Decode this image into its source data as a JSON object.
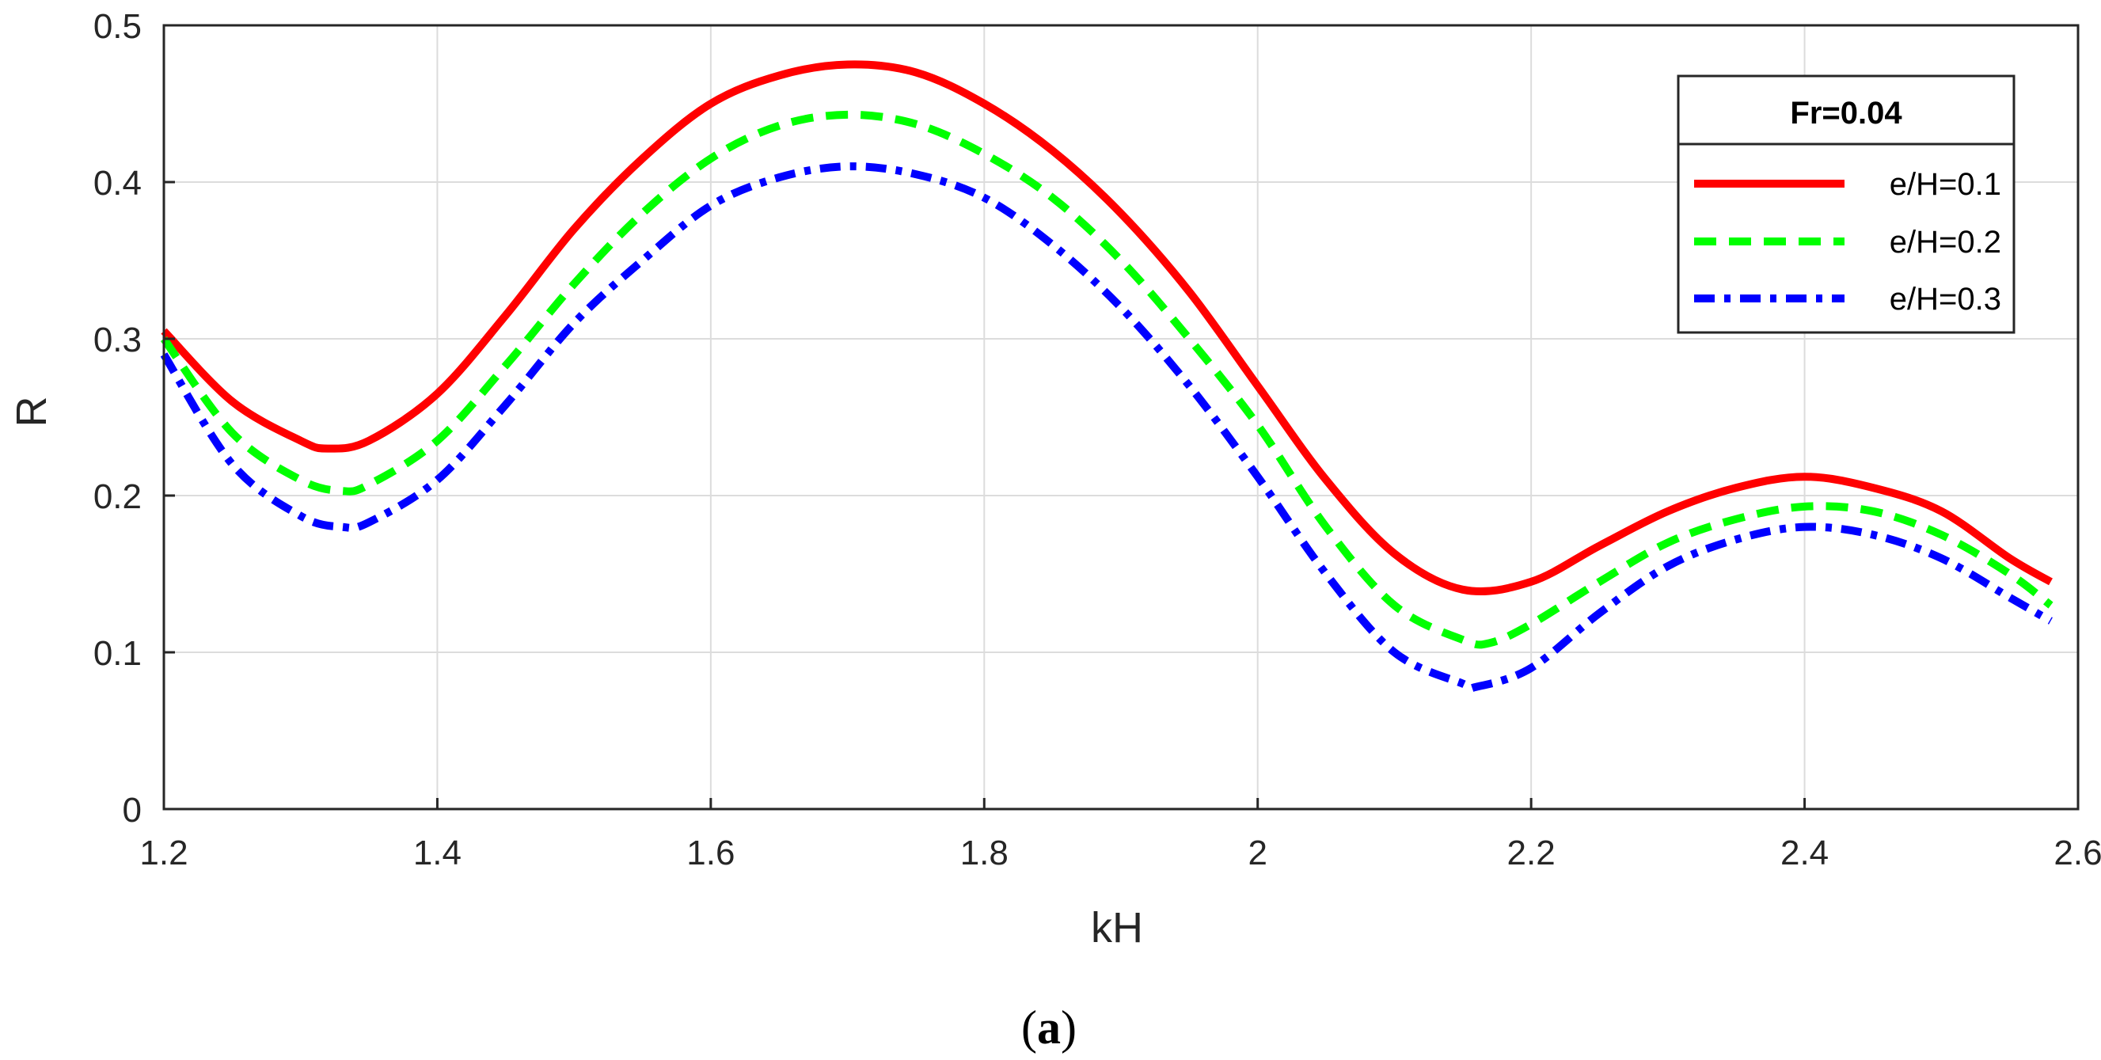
{
  "chart_data": {
    "type": "line",
    "title": "",
    "xlabel": "kH",
    "ylabel": "R",
    "xlim": [
      1.2,
      2.6
    ],
    "ylim": [
      0,
      0.5
    ],
    "xticks": [
      1.2,
      1.4,
      1.6,
      1.8,
      2,
      2.2,
      2.4,
      2.6
    ],
    "yticks": [
      0,
      0.1,
      0.2,
      0.3,
      0.4,
      0.5
    ],
    "grid": true,
    "legend": {
      "title": "Fr=0.04",
      "placement": "top-right"
    },
    "caption_paren_open": "(",
    "caption_letter": "a",
    "caption_paren_close": ")",
    "series": [
      {
        "name": "e/H=0.1",
        "color": "#ff0000",
        "style": "solid",
        "x": [
          1.2,
          1.25,
          1.3,
          1.32,
          1.35,
          1.4,
          1.45,
          1.5,
          1.55,
          1.6,
          1.65,
          1.7,
          1.75,
          1.8,
          1.85,
          1.9,
          1.95,
          2.0,
          2.05,
          2.1,
          2.15,
          2.2,
          2.25,
          2.3,
          2.35,
          2.4,
          2.45,
          2.5,
          2.55,
          2.58
        ],
        "values": [
          0.305,
          0.26,
          0.235,
          0.23,
          0.235,
          0.265,
          0.315,
          0.37,
          0.415,
          0.45,
          0.468,
          0.475,
          0.47,
          0.45,
          0.42,
          0.38,
          0.33,
          0.27,
          0.21,
          0.163,
          0.14,
          0.145,
          0.168,
          0.19,
          0.205,
          0.212,
          0.205,
          0.19,
          0.16,
          0.145
        ]
      },
      {
        "name": "e/H=0.2",
        "color": "#00ff00",
        "style": "dashed",
        "x": [
          1.2,
          1.25,
          1.3,
          1.33,
          1.35,
          1.4,
          1.45,
          1.5,
          1.55,
          1.6,
          1.65,
          1.7,
          1.75,
          1.8,
          1.85,
          1.9,
          1.95,
          2.0,
          2.05,
          2.1,
          2.15,
          2.17,
          2.2,
          2.25,
          2.3,
          2.35,
          2.4,
          2.45,
          2.5,
          2.55,
          2.58
        ],
        "values": [
          0.3,
          0.24,
          0.21,
          0.203,
          0.207,
          0.235,
          0.283,
          0.335,
          0.38,
          0.415,
          0.436,
          0.443,
          0.437,
          0.418,
          0.39,
          0.35,
          0.3,
          0.245,
          0.18,
          0.13,
          0.108,
          0.106,
          0.118,
          0.145,
          0.17,
          0.185,
          0.193,
          0.19,
          0.175,
          0.15,
          0.13
        ]
      },
      {
        "name": "e/H=0.3",
        "color": "#0000ff",
        "style": "dashdot",
        "x": [
          1.2,
          1.25,
          1.3,
          1.33,
          1.35,
          1.4,
          1.45,
          1.5,
          1.55,
          1.6,
          1.65,
          1.7,
          1.75,
          1.8,
          1.85,
          1.9,
          1.95,
          2.0,
          2.05,
          2.1,
          2.15,
          2.16,
          2.2,
          2.25,
          2.3,
          2.35,
          2.4,
          2.45,
          2.5,
          2.55,
          2.58
        ],
        "values": [
          0.29,
          0.22,
          0.187,
          0.18,
          0.183,
          0.21,
          0.258,
          0.31,
          0.35,
          0.385,
          0.403,
          0.41,
          0.405,
          0.39,
          0.36,
          0.32,
          0.27,
          0.212,
          0.15,
          0.1,
          0.08,
          0.078,
          0.09,
          0.125,
          0.155,
          0.172,
          0.18,
          0.175,
          0.16,
          0.135,
          0.12
        ]
      }
    ]
  }
}
